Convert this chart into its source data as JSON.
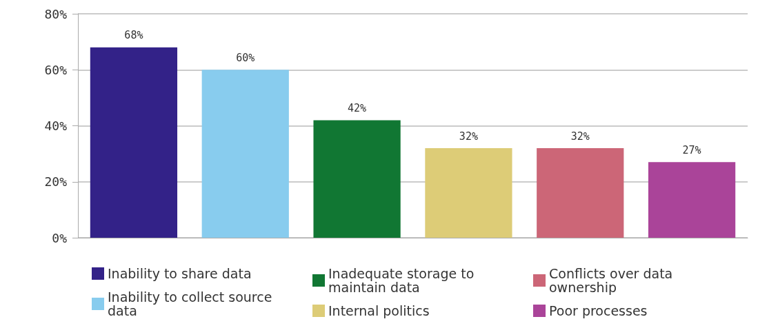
{
  "chart_data": {
    "type": "bar",
    "categories": [
      null,
      null,
      null,
      null,
      null,
      null
    ],
    "series": [
      {
        "name": "Inability to share data",
        "color": "#332288",
        "values": [
          68,
          null,
          null,
          null,
          null,
          null
        ],
        "value_labels": [
          "68%",
          null,
          null,
          null,
          null,
          null
        ]
      },
      {
        "name": "Inability to collect source data",
        "color": "#88ccee",
        "values": [
          null,
          60,
          null,
          null,
          null,
          null
        ],
        "value_labels": [
          null,
          "60%",
          null,
          null,
          null,
          null
        ]
      },
      {
        "name": "Inadequate storage to maintain data",
        "color": "#117733",
        "values": [
          null,
          null,
          42,
          null,
          null,
          null
        ],
        "value_labels": [
          null,
          null,
          "42%",
          null,
          null,
          null
        ]
      },
      {
        "name": "Internal politics",
        "color": "#ddcc77",
        "values": [
          null,
          null,
          null,
          32,
          null,
          null
        ],
        "value_labels": [
          null,
          null,
          null,
          "32%",
          null,
          null
        ]
      },
      {
        "name": "Conflicts over data ownership",
        "color": "#cc6677",
        "values": [
          null,
          null,
          null,
          null,
          32,
          null
        ],
        "value_labels": [
          null,
          null,
          null,
          null,
          "32%",
          null
        ]
      },
      {
        "name": "Poor processes",
        "color": "#aa4499",
        "values": [
          null,
          null,
          null,
          null,
          null,
          27
        ],
        "value_labels": [
          null,
          null,
          null,
          null,
          null,
          "27%"
        ]
      }
    ],
    "ylim": [
      0,
      80
    ],
    "yticks": [
      {
        "value": 0,
        "label": "0%"
      },
      {
        "value": 20,
        "label": "20%"
      },
      {
        "value": 40,
        "label": "40%"
      },
      {
        "value": 60,
        "label": "60%"
      },
      {
        "value": 80,
        "label": "80%"
      }
    ],
    "grid": "y",
    "legend": "bottom"
  }
}
